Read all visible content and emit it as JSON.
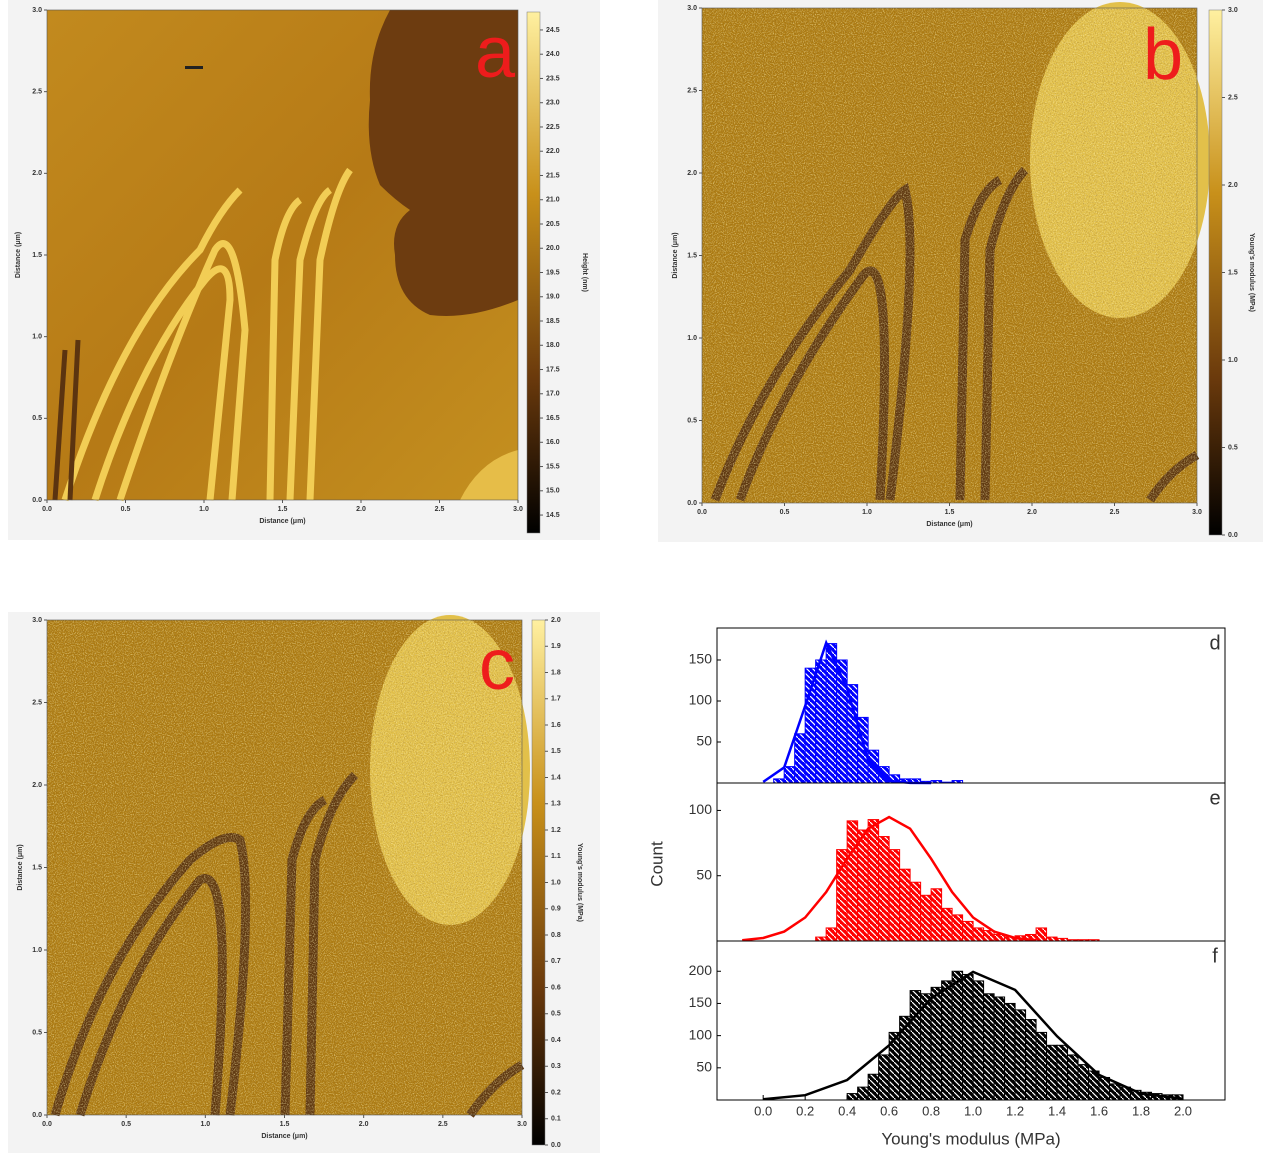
{
  "chart_data": [
    {
      "type": "heatmap",
      "label": "a",
      "xlabel": "Distance (μm)",
      "ylabel": "Distance (μm)",
      "colorbar_label": "Height (nm)",
      "xlim": [
        0,
        3
      ],
      "ylim": [
        0,
        3
      ],
      "xticks": [
        {
          "value": 0,
          "label": "0.0"
        },
        0.5,
        {
          "value": 1,
          "label": "1.0"
        },
        1.5,
        {
          "value": 2,
          "label": "2.0"
        },
        2.5,
        {
          "value": 3,
          "label": "3.0"
        }
      ],
      "yticks": [
        {
          "value": 0,
          "label": "0.0"
        },
        0.5,
        {
          "value": 1,
          "label": "1.0"
        },
        1.5,
        {
          "value": 2,
          "label": "2.0"
        },
        2.5,
        {
          "value": 3,
          "label": "3.0"
        }
      ],
      "clim": [
        14.13,
        24.87
      ],
      "cticks": [
        14.5,
        {
          "value": 15,
          "label": "15.0"
        },
        15.5,
        {
          "value": 16,
          "label": "16.0"
        },
        16.5,
        {
          "value": 17,
          "label": "17.0"
        },
        17.5,
        {
          "value": 18,
          "label": "18.0"
        },
        18.5,
        {
          "value": 19,
          "label": "19.0"
        },
        19.5,
        {
          "value": 20,
          "label": "20.0"
        },
        20.5,
        {
          "value": 21,
          "label": "21.0"
        },
        21.5,
        {
          "value": 22,
          "label": "22.0"
        },
        22.5,
        {
          "value": 23,
          "label": "23.0"
        },
        23.5,
        {
          "value": 24,
          "label": "24.0"
        },
        24.5
      ]
    },
    {
      "type": "heatmap",
      "label": "b",
      "xlabel": "Distance (μm)",
      "ylabel": "Distance (μm)",
      "colorbar_label": "Young's modulus (MPa)",
      "xlim": [
        0,
        3
      ],
      "ylim": [
        0,
        3
      ],
      "xticks": [
        {
          "value": 0,
          "label": "0.0"
        },
        0.5,
        {
          "value": 1,
          "label": "1.0"
        },
        1.5,
        {
          "value": 2,
          "label": "2.0"
        },
        2.5,
        {
          "value": 3,
          "label": "3.0"
        }
      ],
      "yticks": [
        {
          "value": 0,
          "label": "0.0"
        },
        0.5,
        {
          "value": 1,
          "label": "1.0"
        },
        1.5,
        {
          "value": 2,
          "label": "2.0"
        },
        2.5,
        {
          "value": 3,
          "label": "3.0"
        }
      ],
      "clim": [
        0,
        3
      ],
      "cticks": [
        {
          "value": 0,
          "label": "0.0"
        },
        0.5,
        {
          "value": 1,
          "label": "1.0"
        },
        1.5,
        {
          "value": 2,
          "label": "2.0"
        },
        2.5,
        {
          "value": 3,
          "label": "3.0"
        }
      ]
    },
    {
      "type": "heatmap",
      "label": "c",
      "xlabel": "Distance (μm)",
      "ylabel": "Distance (μm)",
      "colorbar_label": "Young's modulus (MPa)",
      "xlim": [
        0,
        3
      ],
      "ylim": [
        0,
        3
      ],
      "xticks": [
        {
          "value": 0,
          "label": "0.0"
        },
        0.5,
        {
          "value": 1,
          "label": "1.0"
        },
        1.5,
        {
          "value": 2,
          "label": "2.0"
        },
        2.5,
        {
          "value": 3,
          "label": "3.0"
        }
      ],
      "yticks": [
        {
          "value": 0,
          "label": "0.0"
        },
        0.5,
        {
          "value": 1,
          "label": "1.0"
        },
        1.5,
        {
          "value": 2,
          "label": "2.0"
        },
        2.5,
        {
          "value": 3,
          "label": "3.0"
        }
      ],
      "clim": [
        0,
        2
      ],
      "cticks": [
        {
          "value": 0,
          "label": "0.0"
        },
        0.1,
        0.2,
        0.3,
        0.4,
        0.5,
        0.6,
        0.7,
        0.8,
        0.9,
        {
          "value": 1,
          "label": "1.0"
        },
        1.1,
        1.2,
        1.3,
        1.4,
        1.5,
        1.6,
        1.7,
        1.8,
        1.9,
        {
          "value": 2,
          "label": "2.0"
        }
      ]
    },
    {
      "type": "histogram",
      "xlabel": "Young's modulus (MPa)",
      "ylabel": "Count",
      "xlim": [
        -0.22,
        2.2
      ],
      "xticks": [
        {
          "value": 0,
          "label": "0.0"
        },
        0.2,
        0.4,
        0.6,
        0.8,
        {
          "value": 1,
          "label": "1.0"
        },
        1.2,
        1.4,
        1.6,
        1.8,
        {
          "value": 2,
          "label": "2.0"
        }
      ],
      "panels": [
        {
          "label": "d",
          "color": "#0000ff",
          "ylim": [
            0,
            189
          ],
          "yticks": [
            50,
            100,
            150
          ],
          "bins": [
            0.05,
            0.1,
            0.15,
            0.2,
            0.25,
            0.3,
            0.35,
            0.4,
            0.45,
            0.5,
            0.55,
            0.6,
            0.65,
            0.7,
            0.75,
            0.8,
            0.85,
            0.9,
            0.95
          ],
          "counts": [
            5,
            20,
            60,
            140,
            150,
            170,
            150,
            120,
            80,
            40,
            20,
            10,
            5,
            5,
            2,
            3,
            1,
            3
          ],
          "fit": {
            "x": [
              0,
              0.1,
              0.2,
              0.3,
              0.4,
              0.5,
              0.6,
              0.7,
              0.8
            ],
            "y": [
              1.4,
              19,
              94,
              171,
              115,
              28,
              2.6,
              0.1,
              0
            ]
          }
        },
        {
          "label": "e",
          "color": "#ff0000",
          "ylim": [
            0,
            121
          ],
          "yticks": [
            50,
            100
          ],
          "bins": [
            0.25,
            0.3,
            0.35,
            0.4,
            0.45,
            0.5,
            0.55,
            0.6,
            0.65,
            0.7,
            0.75,
            0.8,
            0.85,
            0.9,
            0.95,
            1.0,
            1.05,
            1.1,
            1.15,
            1.2,
            1.25,
            1.3,
            1.35,
            1.4,
            1.45,
            1.5,
            1.55,
            1.6
          ],
          "counts": [
            3,
            10,
            70,
            92,
            85,
            93,
            80,
            70,
            55,
            45,
            35,
            40,
            25,
            20,
            15,
            10,
            8,
            5,
            3,
            4,
            5,
            10,
            3,
            2,
            1,
            1,
            1
          ],
          "fit": {
            "x": [
              -0.1,
              0,
              0.1,
              0.2,
              0.3,
              0.4,
              0.5,
              0.6,
              0.7,
              0.8,
              0.9,
              1.0,
              1.1,
              1.2,
              1.3
            ],
            "y": [
              0.6,
              2.3,
              7.2,
              18,
              37.5,
              63,
              86,
              95,
              86,
              63,
              37.5,
              18,
              7.2,
              2.3,
              0.6
            ]
          }
        },
        {
          "label": "f",
          "color": "#000000",
          "ylim": [
            0,
            247
          ],
          "yticks": [
            50,
            100,
            150,
            200
          ],
          "bins": [
            0.4,
            0.45,
            0.5,
            0.55,
            0.6,
            0.65,
            0.7,
            0.75,
            0.8,
            0.85,
            0.9,
            0.95,
            1.0,
            1.05,
            1.1,
            1.15,
            1.2,
            1.25,
            1.3,
            1.35,
            1.4,
            1.45,
            1.5,
            1.55,
            1.6,
            1.65,
            1.7,
            1.75,
            1.8,
            1.85,
            1.9,
            1.95,
            2.0
          ],
          "counts": [
            10,
            20,
            40,
            70,
            105,
            130,
            170,
            165,
            175,
            185,
            200,
            195,
            185,
            165,
            160,
            150,
            140,
            125,
            105,
            85,
            85,
            70,
            55,
            45,
            35,
            25,
            20,
            15,
            12,
            10,
            8,
            8
          ],
          "fit": {
            "x": [
              0,
              0.2,
              0.4,
              0.6,
              0.8,
              1.0,
              1.2,
              1.4,
              1.6,
              1.8,
              2.0
            ],
            "y": [
              1.2,
              7.5,
              31,
              85,
              158,
              199,
              171,
              99,
              39,
              10,
              1.8
            ]
          }
        }
      ]
    }
  ]
}
